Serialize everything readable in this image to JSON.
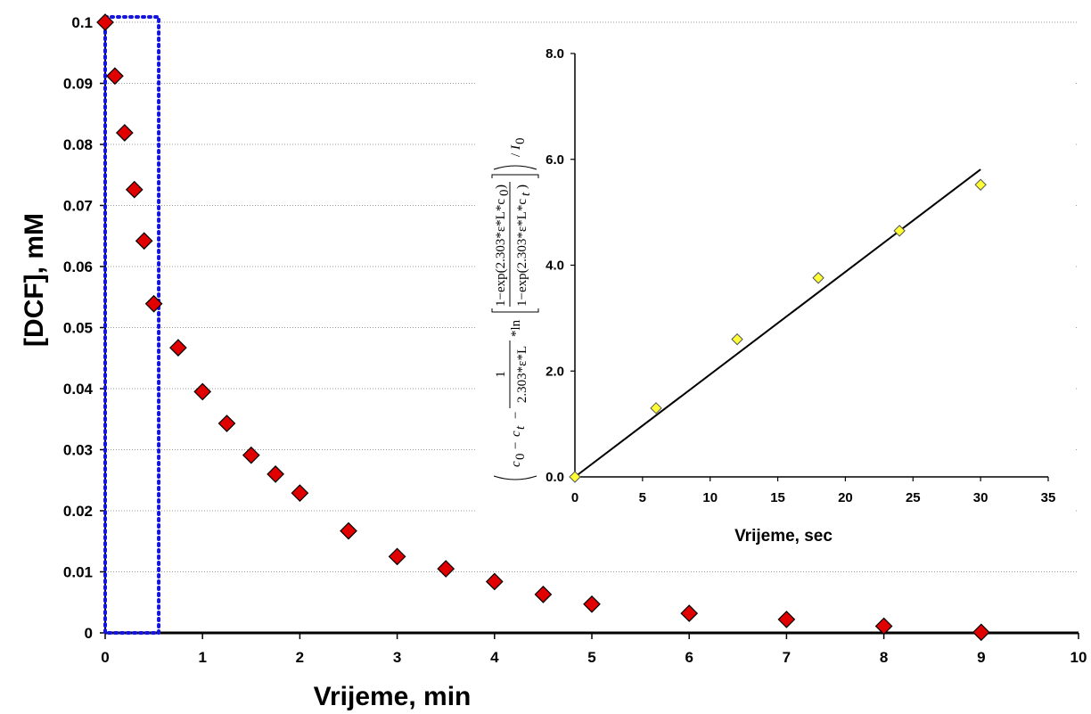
{
  "chart_data": [
    {
      "type": "scatter",
      "xlabel": "Vrijeme, min",
      "ylabel": "[DCF], mM",
      "xlim": [
        0,
        10
      ],
      "ylim": [
        0,
        0.1
      ],
      "x_ticks": [
        "0",
        "1",
        "2",
        "3",
        "4",
        "5",
        "6",
        "7",
        "8",
        "9",
        "10"
      ],
      "y_ticks": [
        "0",
        "0.01",
        "0.02",
        "0.03",
        "0.04",
        "0.05",
        "0.06",
        "0.07",
        "0.08",
        "0.09",
        "0.1"
      ],
      "grid": "horizontal dotted",
      "marker": "diamond",
      "marker_color": "#e00000",
      "highlight_box": {
        "x_range": [
          0,
          0.55
        ],
        "y_range": [
          0,
          0.1
        ],
        "color": "#1515e0",
        "style": "dotted"
      },
      "series": [
        {
          "x": [
            0,
            0.1,
            0.2,
            0.3,
            0.4,
            0.5,
            0.75,
            1,
            1.25,
            1.5,
            1.75,
            2,
            2.5,
            3,
            3.5,
            4,
            4.5,
            5,
            6,
            7,
            8,
            9
          ],
          "y": [
            0.1,
            0.0912,
            0.0819,
            0.0726,
            0.0642,
            0.0539,
            0.0467,
            0.0395,
            0.0343,
            0.0291,
            0.026,
            0.0229,
            0.0167,
            0.0125,
            0.0105,
            0.0084,
            0.0063,
            0.0047,
            0.0032,
            0.0022,
            0.0011,
            0.0001
          ]
        }
      ]
    },
    {
      "type": "scatter",
      "xlabel": "Vrijeme, sec",
      "xlim": [
        0,
        35
      ],
      "ylim": [
        0,
        8
      ],
      "x_ticks": [
        "0",
        "5",
        "10",
        "15",
        "20",
        "25",
        "30",
        "35"
      ],
      "y_ticks": [
        "0.0",
        "2.0",
        "4.0",
        "6.0",
        "8.0"
      ],
      "grid": false,
      "marker": "diamond",
      "marker_color": "#ffff33",
      "series": [
        {
          "x": [
            0,
            6,
            12,
            18,
            24,
            30
          ],
          "y": [
            0,
            1.3,
            2.6,
            3.76,
            4.65,
            5.52
          ]
        }
      ],
      "trendline": {
        "x": [
          0,
          30
        ],
        "y": [
          0,
          5.81
        ]
      },
      "ylabel_formula": {
        "c0": "c",
        "c0_sub": "0",
        "minus1": "−",
        "ct": "c",
        "ct_sub": "t",
        "minus2": "−",
        "coef_num": "1",
        "coef_den": "2.303*ε*L",
        "star_ln": "*ln",
        "inner_num": "1−exp(2.303*ε*L*c",
        "inner_num_sub": "0",
        "inner_den": "1−exp(2.303*ε*L*c",
        "inner_den_sub": "t",
        "close": ")",
        "div": "/",
        "i0": "I",
        "i0_sub": "0"
      }
    }
  ]
}
